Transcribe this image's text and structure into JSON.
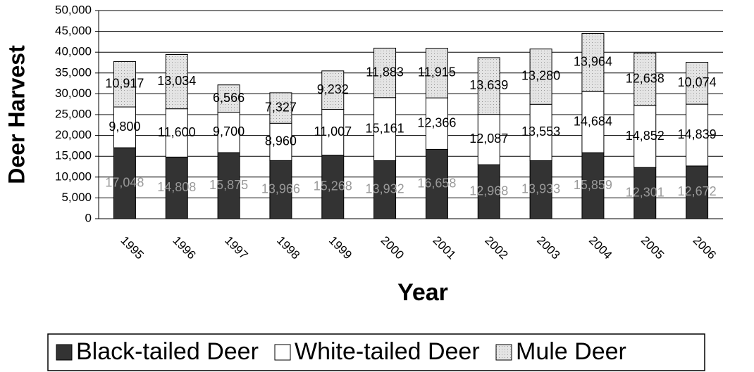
{
  "chart_data": {
    "type": "stacked_bar",
    "categories": [
      "1995",
      "1996",
      "1997",
      "1998",
      "1999",
      "2000",
      "2001",
      "2002",
      "2003",
      "2004",
      "2005",
      "2006"
    ],
    "series": [
      {
        "name": "Black-tailed Deer",
        "color": "#333333",
        "label_color": "#999999",
        "values": [
          17048,
          14808,
          15875,
          13966,
          15268,
          13932,
          16658,
          12968,
          13933,
          15859,
          12301,
          12672
        ],
        "value_labels": [
          "17,048",
          "14,808",
          "15,875",
          "13,966",
          "15,268",
          "13,932",
          "16,658",
          "12,968",
          "13,933",
          "15,859",
          "12,301",
          "12,672"
        ]
      },
      {
        "name": "White-tailed Deer",
        "color": "#ffffff",
        "label_color": "#000000",
        "values": [
          9800,
          11600,
          9700,
          8960,
          11007,
          15161,
          12366,
          12087,
          13553,
          14684,
          14852,
          14839
        ],
        "value_labels": [
          "9,800",
          "11,600",
          "9,700",
          "8,960",
          "11,007",
          "15,161",
          "12,366",
          "12,087",
          "13,553",
          "14,684",
          "14,852",
          "14,839"
        ]
      },
      {
        "name": "Mule Deer",
        "color": "#dddddd",
        "label_color": "#000000",
        "values": [
          10917,
          13034,
          6566,
          7327,
          9232,
          11883,
          11915,
          13639,
          13280,
          13964,
          12638,
          10074
        ],
        "value_labels": [
          "10,917",
          "13,034",
          "6,566",
          "7,327",
          "9,232",
          "11,883",
          "11,915",
          "13,639",
          "13,280",
          "13,964",
          "12,638",
          "10,074"
        ]
      }
    ],
    "x_label": "Year",
    "y_label": "Deer Harvest",
    "ylim": [
      0,
      50000
    ],
    "yticks": [
      0,
      {
        "value": 5000,
        "label": "5,000"
      },
      {
        "value": 10000,
        "label": "10,000"
      },
      {
        "value": 15000,
        "label": "15,000"
      },
      {
        "value": 20000,
        "label": "20,000"
      },
      {
        "value": 25000,
        "label": "25,000"
      },
      {
        "value": 30000,
        "label": "30,000"
      },
      {
        "value": 35000,
        "label": "35,000"
      },
      {
        "value": 40000,
        "label": "40,000"
      },
      {
        "value": 45000,
        "label": "45,000"
      },
      {
        "value": 50000,
        "label": "50,000"
      }
    ],
    "grid": true,
    "legend": "bottom"
  }
}
